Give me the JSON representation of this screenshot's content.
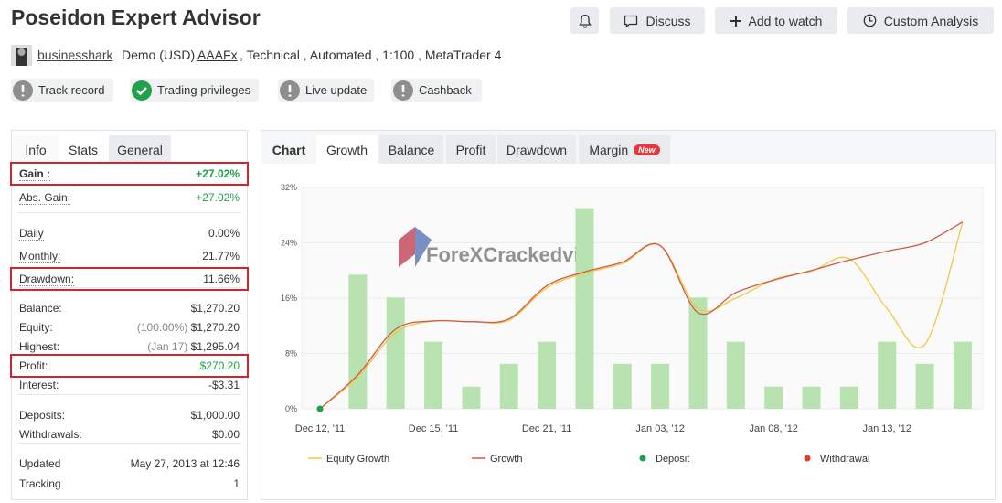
{
  "header": {
    "title": "Poseidon Expert Advisor",
    "buttons": [
      "Discuss",
      "Add to watch",
      "Custom Analysis"
    ]
  },
  "account": {
    "user": "businesshark",
    "currency": "Demo (USD),",
    "broker": "AAAFx",
    "details": ", Technical , Automated , 1:100 , MetaTrader 4"
  },
  "badges": [
    {
      "label": "Track record",
      "status": "warning"
    },
    {
      "label": "Trading privileges",
      "status": "ok"
    },
    {
      "label": "Live update",
      "status": "warning"
    },
    {
      "label": "Cashback",
      "status": "warning"
    }
  ],
  "left_panel": {
    "tabs": [
      "Info",
      "Stats",
      "General"
    ],
    "sections": [
      [
        {
          "label": "Gain :",
          "value": "+27.02%",
          "positive": true,
          "highlight": true
        },
        {
          "label": "Abs. Gain:",
          "value": "+27.02%",
          "positive": true
        }
      ],
      [
        {
          "label": "Daily",
          "value": "0.00%"
        },
        {
          "label": "Monthly:",
          "value": "21.77%"
        },
        {
          "label": "Drawdown:",
          "value": "11.66%",
          "highlight": true
        }
      ],
      [
        {
          "label": "Balance:",
          "value": "$1,270.20"
        },
        {
          "label": "Equity:",
          "note": "(100.00%)",
          "value": "$1,270.20"
        },
        {
          "label": "Highest:",
          "note": "(Jan 17)",
          "value": "$1,295.04"
        },
        {
          "label": "Profit:",
          "value": "$270.20",
          "positive": true,
          "highlight": true
        },
        {
          "label": "Interest:",
          "value": "-$3.31"
        }
      ],
      [
        {
          "label": "Deposits:",
          "value": "$1,000.00"
        },
        {
          "label": "Withdrawals:",
          "value": "$0.00"
        }
      ],
      [
        {
          "label": "Updated",
          "value": "May 27, 2013 at 12:46"
        },
        {
          "label": "Tracking",
          "value": "1"
        }
      ]
    ]
  },
  "chart_panel": {
    "tabs": [
      "Chart",
      "Growth",
      "Balance",
      "Profit",
      "Drawdown",
      "Margin"
    ],
    "new_badge": "New"
  },
  "watermark": "ForeXCrackedvip",
  "chart_data": {
    "type": "combo",
    "categories": [
      "Dec 12, '11",
      null,
      null,
      "Dec 15, '11",
      null,
      null,
      "Dec 21, '11",
      null,
      null,
      "Jan 03, '12",
      null,
      null,
      "Jan 08, '12",
      null,
      null,
      "Jan 13, '12",
      null,
      null
    ],
    "series": [
      {
        "type": "bar",
        "color": "#b8e3b0",
        "values": [
          null,
          19.4,
          16.1,
          9.7,
          3.2,
          6.5,
          9.7,
          29,
          6.5,
          6.5,
          16.1,
          9.7,
          3.2,
          3.2,
          3.2,
          9.7,
          6.5,
          9.7
        ]
      },
      {
        "type": "line",
        "name": "Equity Growth",
        "color": "#f2c744",
        "values": [
          0,
          4.6,
          11,
          12.7,
          12.6,
          12.8,
          17.5,
          19.6,
          21,
          23.6,
          14.5,
          16,
          18.7,
          19.9,
          21.7,
          14.5,
          9.3,
          27.02
        ]
      },
      {
        "type": "line",
        "name": "Growth",
        "color": "#cf5a47",
        "values": [
          0,
          4.9,
          11.5,
          12.7,
          12.6,
          13,
          17.8,
          19.8,
          21.2,
          23.6,
          13.9,
          16.8,
          18.6,
          20,
          21.5,
          22.8,
          24,
          27.02
        ]
      },
      {
        "type": "scatter",
        "name": "Deposit",
        "color": "#1aa34a",
        "values": [
          0,
          null,
          null,
          null,
          null,
          null,
          null,
          null,
          null,
          null,
          null,
          null,
          null,
          null,
          null,
          null,
          null,
          null
        ]
      },
      {
        "type": "scatter",
        "name": "Withdrawal",
        "color": "#e23b2e",
        "values": [
          null,
          null,
          null,
          null,
          null,
          null,
          null,
          null,
          null,
          null,
          null,
          null,
          null,
          null,
          null,
          null,
          null,
          null
        ]
      }
    ],
    "ylim": [
      0,
      32
    ],
    "yticks": [
      {
        "value": 0,
        "label": "0%"
      },
      {
        "value": 8,
        "label": "8%"
      },
      {
        "value": 16,
        "label": "16%"
      },
      {
        "value": 24,
        "label": "24%"
      },
      {
        "value": 32,
        "label": "32%"
      }
    ],
    "grid": true
  }
}
